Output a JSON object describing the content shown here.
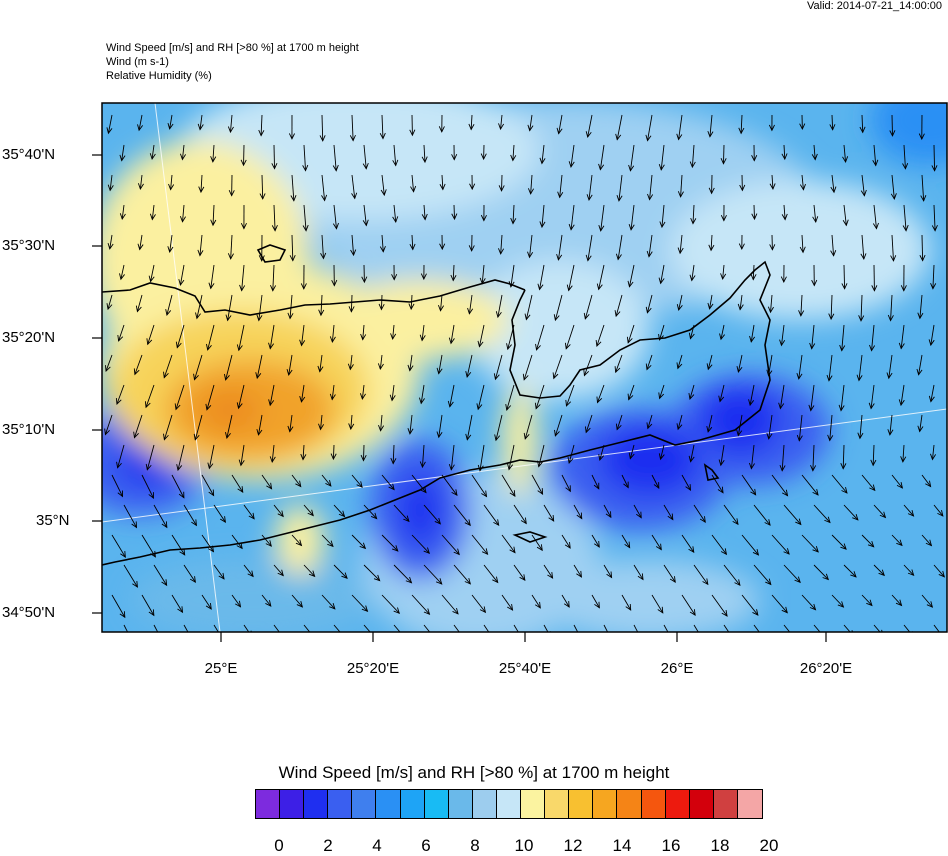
{
  "header": {
    "valid": "Valid: 2014-07-21_14:00:00",
    "title_lines": [
      "Wind Speed [m/s] and RH [>80 %] at 1700 m height",
      "Wind   (m s-1)",
      "Relative Humidity   (%)"
    ]
  },
  "map": {
    "lat_labels": [
      "35°40'N",
      "35°30'N",
      "35°20'N",
      "35°10'N",
      "35°N",
      "34°50'N"
    ],
    "lon_labels": [
      "25°E",
      "25°20'E",
      "25°40'E",
      "26°E",
      "26°20'E"
    ],
    "wind_direction": "south",
    "colors": {
      "strong": "#1f3fe8",
      "medium": "#3b8ff0",
      "light": "#9fd0f2",
      "calm": "#c6e6f7",
      "humid_low": "#fbf0a0",
      "humid_mid": "#f7d35a",
      "humid_high": "#f1a22a",
      "humid_peak": "#ec8a1c",
      "coast": "#000000"
    }
  },
  "colorbar": {
    "title": "Wind Speed [m/s] and RH [>80 %] at 1700 m height",
    "colors": [
      "#7d2bde",
      "#3d1fe6",
      "#1f2ff0",
      "#3a5ff0",
      "#3f7fee",
      "#2a90f4",
      "#1ea4f6",
      "#18bbf4",
      "#6ab9ea",
      "#9dcdee",
      "#c6e6f7",
      "#fbf3a0",
      "#f9d86a",
      "#f8c030",
      "#f6a620",
      "#f58416",
      "#f5560e",
      "#ed1a0e",
      "#d3000c",
      "#d04040",
      "#f4a6a6"
    ],
    "ticks": [
      "0",
      "2",
      "4",
      "6",
      "8",
      "10",
      "12",
      "14",
      "16",
      "18",
      "20"
    ]
  }
}
